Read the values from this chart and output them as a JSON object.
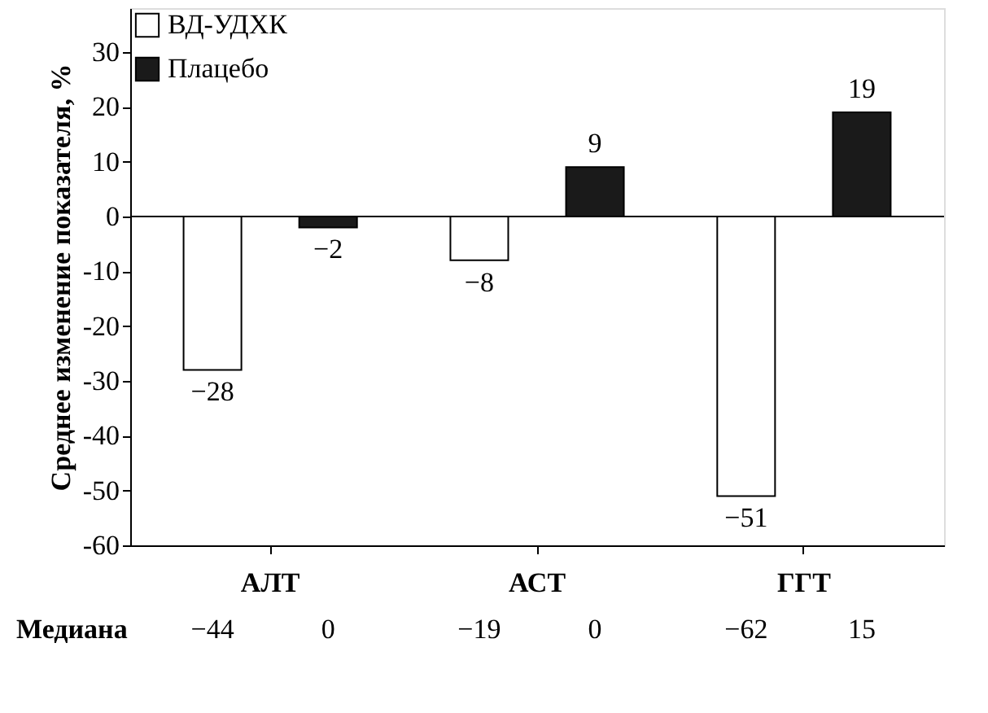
{
  "chart_data": {
    "type": "bar",
    "ylabel": "Среднее изменение показателя, %",
    "categories": [
      "АЛТ",
      "АСТ",
      "ГГТ"
    ],
    "series": [
      {
        "name": "ВД-УДХК",
        "color": "#ffffff",
        "values": [
          -28,
          -8,
          -51
        ],
        "value_labels": [
          "−28",
          "−8",
          "−51"
        ]
      },
      {
        "name": "Плацебо",
        "color": "#1a1a1a",
        "values": [
          -2,
          9,
          19
        ],
        "value_labels": [
          "−2",
          "9",
          "19"
        ]
      }
    ],
    "ylim": [
      -60,
      38
    ],
    "yticks": [
      -60,
      -50,
      -40,
      -30,
      -20,
      -10,
      0,
      10,
      20,
      30
    ],
    "grid": false,
    "legend": "top left",
    "ref_lines": [
      {
        "axis": "y",
        "value": 0
      }
    ],
    "annotations": [
      "Медиана",
      "−44",
      "0",
      "−19",
      "0",
      "−62",
      "15"
    ]
  }
}
